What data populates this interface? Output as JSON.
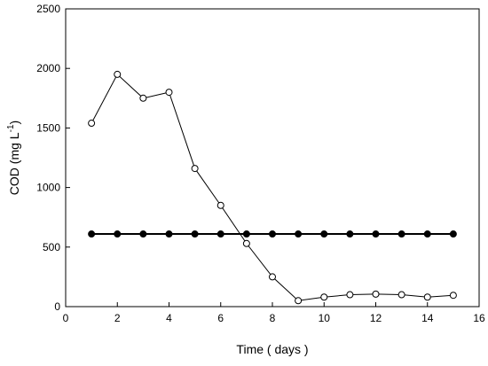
{
  "chart_data": {
    "type": "line",
    "title": "",
    "xlabel": "Time ( days )",
    "ylabel": "COD  (mg L",
    "ylabel_superscript": "-1",
    "ylabel_suffix": ")",
    "xlim": [
      0,
      16
    ],
    "ylim": [
      0,
      2500
    ],
    "xticks": [
      0,
      2,
      4,
      6,
      8,
      10,
      12,
      14,
      16
    ],
    "yticks": [
      0,
      500,
      1000,
      1500,
      2000,
      2500
    ],
    "grid": false,
    "x": [
      1,
      2,
      3,
      4,
      5,
      6,
      7,
      8,
      9,
      10,
      11,
      12,
      13,
      14,
      15
    ],
    "series": [
      {
        "marker": "open-circle",
        "color": "#000000",
        "values": [
          1540,
          1950,
          1750,
          1800,
          1160,
          850,
          530,
          250,
          50,
          80,
          100,
          105,
          100,
          80,
          95
        ]
      },
      {
        "marker": "filled-circle",
        "color": "#000000",
        "values": [
          610,
          610,
          610,
          610,
          610,
          610,
          610,
          610,
          610,
          610,
          610,
          610,
          610,
          610,
          610
        ]
      }
    ]
  }
}
